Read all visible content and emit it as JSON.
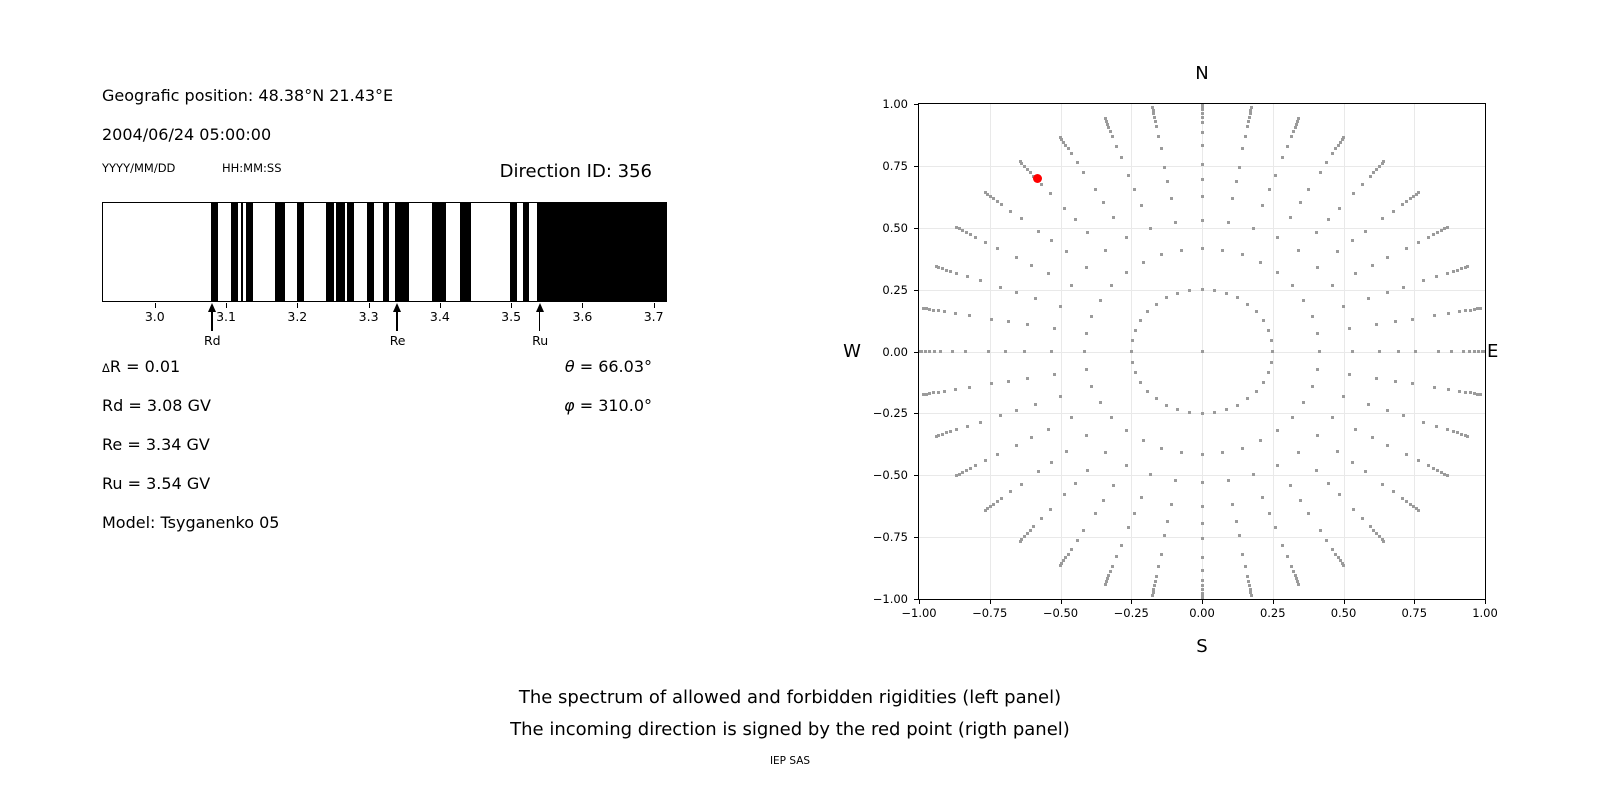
{
  "header": {
    "geo_position": "Geografic position: 48.38°N 21.43°E",
    "datetime": "2004/06/24 05:00:00",
    "date_format": "YYYY/MM/DD",
    "time_format": "HH:MM:SS",
    "direction_id": "Direction ID: 356"
  },
  "info": {
    "delta_symbol": "Δ",
    "delta_value": "R = 0.01",
    "rd": "Rd = 3.08 GV",
    "re": "Re = 3.34 GV",
    "ru": "Ru = 3.54 GV",
    "model": "Model: Tsyganenko 05",
    "theta_symbol": "θ",
    "theta_value": " = 66.03°",
    "phi_symbol": "φ",
    "phi_value": " = 310.0°"
  },
  "caption": {
    "line1": "The spectrum of allowed and forbidden rigidities (left panel)",
    "line2": "The incoming direction is signed by the red point (rigth panel)",
    "credit": "IEP SAS"
  },
  "chart_data": [
    {
      "id": "rigidity-spectrum",
      "type": "bar",
      "title": "",
      "xlabel": "",
      "ylabel": "",
      "x_range": [
        2.928,
        3.718
      ],
      "delta_r": 0.01,
      "bar_color": "#000000",
      "background": "#ffffff",
      "x_ticks": [
        {
          "v": 3.0,
          "label": "3.0"
        },
        {
          "v": 3.1,
          "label": "3.1"
        },
        {
          "v": 3.2,
          "label": "3.2"
        },
        {
          "v": 3.3,
          "label": "3.3"
        },
        {
          "v": 3.4,
          "label": "3.4"
        },
        {
          "v": 3.5,
          "label": "3.5"
        },
        {
          "v": 3.6,
          "label": "3.6"
        },
        {
          "v": 3.7,
          "label": "3.7"
        }
      ],
      "black_bands": [
        [
          3.079,
          3.09
        ],
        [
          3.108,
          3.118
        ],
        [
          3.122,
          3.125
        ],
        [
          3.128,
          3.139
        ],
        [
          3.17,
          3.184
        ],
        [
          3.2,
          3.21
        ],
        [
          3.241,
          3.252
        ],
        [
          3.255,
          3.267
        ],
        [
          3.27,
          3.28
        ],
        [
          3.298,
          3.308
        ],
        [
          3.321,
          3.33
        ],
        [
          3.338,
          3.358
        ],
        [
          3.39,
          3.409
        ],
        [
          3.429,
          3.444
        ],
        [
          3.499,
          3.509
        ],
        [
          3.517,
          3.526
        ],
        [
          3.537,
          3.718
        ]
      ],
      "markers": [
        {
          "label": "Rd",
          "value": 3.08
        },
        {
          "label": "Re",
          "value": 3.34
        },
        {
          "label": "Ru",
          "value": 3.54
        }
      ]
    },
    {
      "id": "incoming-direction",
      "type": "scatter",
      "title": "",
      "xlim": [
        -1.0,
        1.0
      ],
      "ylim": [
        -1.0,
        1.0
      ],
      "grid": true,
      "grid_color": "#e9e9e9",
      "dot_color": "#9b9b9b",
      "red_color": "#ff0000",
      "compass": {
        "top": "N",
        "bottom": "S",
        "left": "W",
        "right": "E"
      },
      "ticks": [
        {
          "v": -1.0,
          "label": "−1.00"
        },
        {
          "v": -0.75,
          "label": "−0.75"
        },
        {
          "v": -0.5,
          "label": "−0.50"
        },
        {
          "v": -0.25,
          "label": "−0.25"
        },
        {
          "v": 0.0,
          "label": "0.00"
        },
        {
          "v": 0.25,
          "label": "0.25"
        },
        {
          "v": 0.5,
          "label": "0.50"
        },
        {
          "v": 0.75,
          "label": "0.75"
        },
        {
          "v": 1.0,
          "label": "1.00"
        }
      ],
      "note": "36 radial spokes of asymptotic-direction dots; x = r·sin(azimuth), y = r·cos(azimuth); inner ring at r = 0.25; dots bunch toward r = 1.0; single gray dot at origin",
      "spoke_azimuths_deg": [
        0,
        10,
        20,
        30,
        40,
        50,
        60,
        70,
        80,
        90,
        100,
        110,
        120,
        130,
        140,
        150,
        160,
        170,
        180,
        190,
        200,
        210,
        220,
        230,
        240,
        250,
        260,
        270,
        280,
        290,
        300,
        310,
        320,
        330,
        340,
        350
      ],
      "spoke_r_profile": [
        0.25,
        0.416,
        0.531,
        0.627,
        0.696,
        0.756,
        0.834,
        0.883,
        0.924,
        0.945,
        0.962,
        0.977,
        0.99,
        1.0
      ],
      "center_dot": {
        "x": 0.0,
        "y": 0.0
      },
      "red_point": {
        "x": -0.582,
        "y": 0.699
      }
    }
  ]
}
